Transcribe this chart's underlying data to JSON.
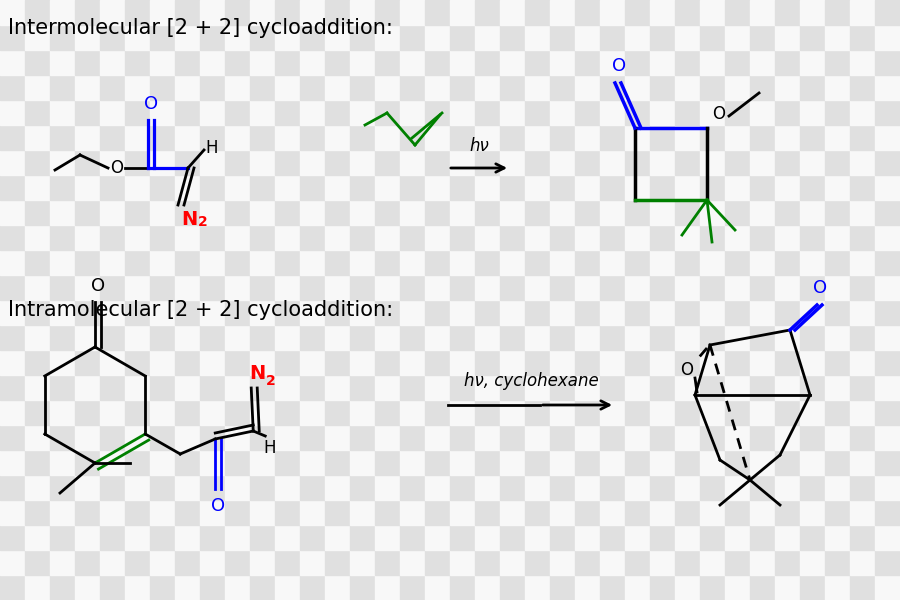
{
  "title1": "Intermolecular [2 + 2] cycloaddition:",
  "title2": "Intramolecular [2 + 2] cycloaddition:",
  "hv_label1": "hν",
  "hv_label2": "hν, cyclohexane",
  "black": "#000000",
  "blue": "#0000ff",
  "red": "#ff0000",
  "green": "#008000",
  "checker1": "#e0e0e0",
  "checker2": "#f8f8f8",
  "title_fontsize": 15,
  "label_fontsize": 13,
  "line_width": 2.0
}
